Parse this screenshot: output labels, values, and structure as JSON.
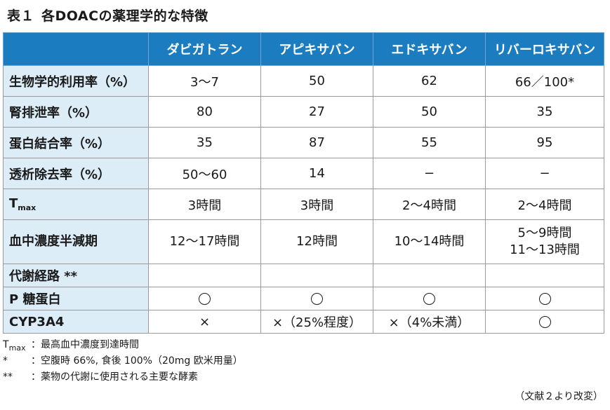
{
  "title": {
    "label": "表１",
    "text": "各DOACの薬理学的な特徴"
  },
  "table": {
    "columns": [
      "ダビガトラン",
      "アピキサバン",
      "エドキサバン",
      "リバーロキサバン"
    ],
    "rows": [
      {
        "label": "生物学的利用率（%）",
        "values": [
          "3〜7",
          "50",
          "62",
          "66／100*"
        ]
      },
      {
        "label": "腎排泄率（%）",
        "values": [
          "80",
          "27",
          "50",
          "35"
        ]
      },
      {
        "label": "蛋白結合率（%）",
        "values": [
          "35",
          "87",
          "55",
          "95"
        ]
      },
      {
        "label": "透析除去率（%）",
        "values": [
          "50〜60",
          "14",
          "−",
          "−"
        ]
      },
      {
        "label_main": "T",
        "label_sub": "max",
        "values": [
          "3時間",
          "3時間",
          "2〜4時間",
          "2〜4時間"
        ]
      },
      {
        "label": "血中濃度半減期",
        "values": [
          "12〜17時間",
          "12時間",
          "10〜14時間",
          "5〜9時間"
        ],
        "extra": "11〜13時間"
      },
      {
        "label": "代謝経路 **",
        "values": [
          "",
          "",
          "",
          ""
        ]
      },
      {
        "label": "P 糖蛋白",
        "values": [
          "○",
          "○",
          "○",
          "○"
        ]
      },
      {
        "label": "CYP3A4",
        "values": [
          "×",
          "×（25%程度）",
          "×（4%未満）",
          "○"
        ]
      }
    ]
  },
  "footnotes": [
    {
      "key_main": "T",
      "key_sub": "max",
      "colon": "：",
      "text": "最高血中濃度到達時間"
    },
    {
      "key": "*",
      "colon": "：",
      "text": "空腹時 66%, 食後 100%（20mg 欧米用量）"
    },
    {
      "key": "**",
      "colon": "：",
      "text": "薬物の代謝に使用される主要な酵素"
    }
  ],
  "source": "（文献２より改変）"
}
